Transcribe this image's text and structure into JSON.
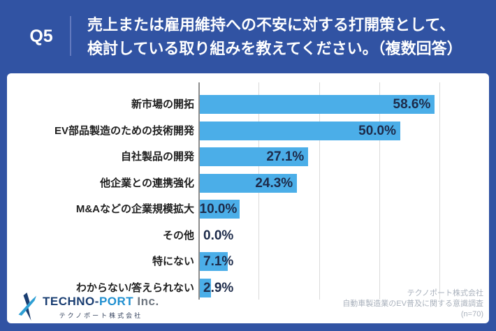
{
  "header": {
    "question_label": "Q5",
    "title_line1": "売上または雇用維持への不安に対する打開策として、",
    "title_line2": "検討している取り組みを教えてください。（複数回答）"
  },
  "chart_data": {
    "type": "bar",
    "orientation": "horizontal",
    "title": "",
    "categories": [
      "新市場の開拓",
      "EV部品製造のための技術開発",
      "自社製品の開発",
      "他企業との連携強化",
      "M&Aなどの企業規模拡大",
      "その他",
      "特にない",
      "わからない/答えられない"
    ],
    "values": [
      58.6,
      50.0,
      27.1,
      24.3,
      10.0,
      0.0,
      7.1,
      2.9
    ],
    "value_labels": [
      "58.6%",
      "50.0%",
      "27.1%",
      "24.3%",
      "10.0%",
      "0.0%",
      "7.1%",
      "2.9%"
    ],
    "unit": "%",
    "xlim": [
      0,
      65
    ],
    "gridlines_percent": [
      15,
      30,
      45,
      60
    ],
    "grid": true,
    "legend": "none",
    "bar_color": "#4BAEE8"
  },
  "footer": {
    "logo": {
      "part1": "TECHNO-",
      "part2": "PORT",
      "part3": " Inc.",
      "subtext": "テクノポート株式会社"
    },
    "attribution_line1": "テクノポート株式会社",
    "attribution_line2": "自動車製造業のEV普及に関する意識調査",
    "attribution_line3": "(n=70)"
  },
  "colors": {
    "background": "#3153A3",
    "card": "#FFFFFF",
    "bar": "#4BAEE8",
    "header_text": "#FFFFFF",
    "category_label": "#1F1F1F",
    "value_label": "#1D2B4A",
    "gridline": "#DADADA",
    "axis": "#8C8C8C",
    "attribution_text": "#A9B1BC",
    "logo_navy": "#1A3E72",
    "logo_blue": "#1F8FD0"
  }
}
